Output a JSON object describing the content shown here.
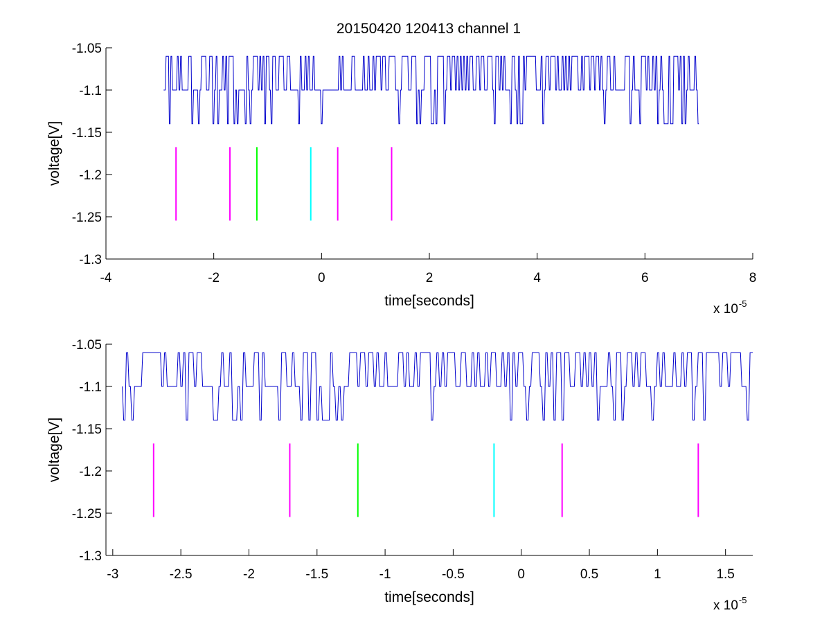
{
  "figure": {
    "title": "20150420 120413 channel 1"
  },
  "chart_data": [
    {
      "type": "line",
      "title": "20150420 120413 channel 1",
      "xlabel": "time[seconds]",
      "ylabel": "voltage[V]",
      "x_exponent_base": "x 10",
      "x_exponent_power": "-5",
      "xlim": [
        -4,
        8
      ],
      "ylim": [
        -1.3,
        -1.05
      ],
      "xticks": [
        -4,
        -2,
        0,
        2,
        4,
        6,
        8
      ],
      "xtick_labels": [
        "-4",
        "-2",
        "0",
        "2",
        "4",
        "6",
        "8"
      ],
      "yticks": [
        -1.3,
        -1.25,
        -1.2,
        -1.15,
        -1.1,
        -1.05
      ],
      "ytick_labels": [
        "-1.3",
        "-1.25",
        "-1.2",
        "-1.15",
        "-1.1",
        "-1.05"
      ],
      "grid": false,
      "signal": {
        "color": "#0000cc",
        "x_start": -2.93,
        "x_end": 7.0,
        "baseline": -1.1,
        "levels": [
          -1.06,
          -1.1,
          -1.14
        ],
        "sample_step": 0.03,
        "pattern": "dense random switching between -1.06, -1.10 and -1.14 V"
      },
      "markers": [
        {
          "x": -2.7,
          "y_top": -1.1675,
          "y_bottom": -1.2545,
          "color": "#ff00ff"
        },
        {
          "x": -1.7,
          "y_top": -1.1675,
          "y_bottom": -1.2545,
          "color": "#ff00ff"
        },
        {
          "x": -1.2,
          "y_top": -1.1675,
          "y_bottom": -1.2545,
          "color": "#00ff00"
        },
        {
          "x": -0.2,
          "y_top": -1.1675,
          "y_bottom": -1.2545,
          "color": "#00ffff"
        },
        {
          "x": 0.3,
          "y_top": -1.1675,
          "y_bottom": -1.2545,
          "color": "#ff00ff"
        },
        {
          "x": 1.3,
          "y_top": -1.1675,
          "y_bottom": -1.2545,
          "color": "#ff00ff"
        }
      ]
    },
    {
      "type": "line",
      "title": "",
      "xlabel": "time[seconds]",
      "ylabel": "voltage[V]",
      "x_exponent_base": "x 10",
      "x_exponent_power": "-5",
      "xlim": [
        -3.05,
        1.7
      ],
      "ylim": [
        -1.3,
        -1.05
      ],
      "xticks": [
        -3,
        -2.5,
        -2,
        -1.5,
        -1,
        -0.5,
        0,
        0.5,
        1,
        1.5
      ],
      "xtick_labels": [
        "-3",
        "-2.5",
        "-2",
        "-1.5",
        "-1",
        "-0.5",
        "0",
        "0.5",
        "1",
        "1.5"
      ],
      "yticks": [
        -1.3,
        -1.25,
        -1.2,
        -1.15,
        -1.1,
        -1.05
      ],
      "ytick_labels": [
        "-1.3",
        "-1.25",
        "-1.2",
        "-1.15",
        "-1.1",
        "-1.05"
      ],
      "grid": false,
      "signal": {
        "color": "#0000cc",
        "x_start": -2.93,
        "x_end": 1.7,
        "baseline": -1.1,
        "levels": [
          -1.06,
          -1.1,
          -1.14
        ],
        "sample_step": 0.02,
        "pattern": "random switching between -1.06, -1.10 and -1.14 V"
      },
      "markers": [
        {
          "x": -2.7,
          "y_top": -1.1675,
          "y_bottom": -1.2545,
          "color": "#ff00ff"
        },
        {
          "x": -1.7,
          "y_top": -1.1675,
          "y_bottom": -1.2545,
          "color": "#ff00ff"
        },
        {
          "x": -1.2,
          "y_top": -1.1675,
          "y_bottom": -1.2545,
          "color": "#00ff00"
        },
        {
          "x": -0.2,
          "y_top": -1.1675,
          "y_bottom": -1.2545,
          "color": "#00ffff"
        },
        {
          "x": 0.3,
          "y_top": -1.1675,
          "y_bottom": -1.2545,
          "color": "#ff00ff"
        },
        {
          "x": 1.3,
          "y_top": -1.1675,
          "y_bottom": -1.2545,
          "color": "#ff00ff"
        }
      ]
    }
  ]
}
